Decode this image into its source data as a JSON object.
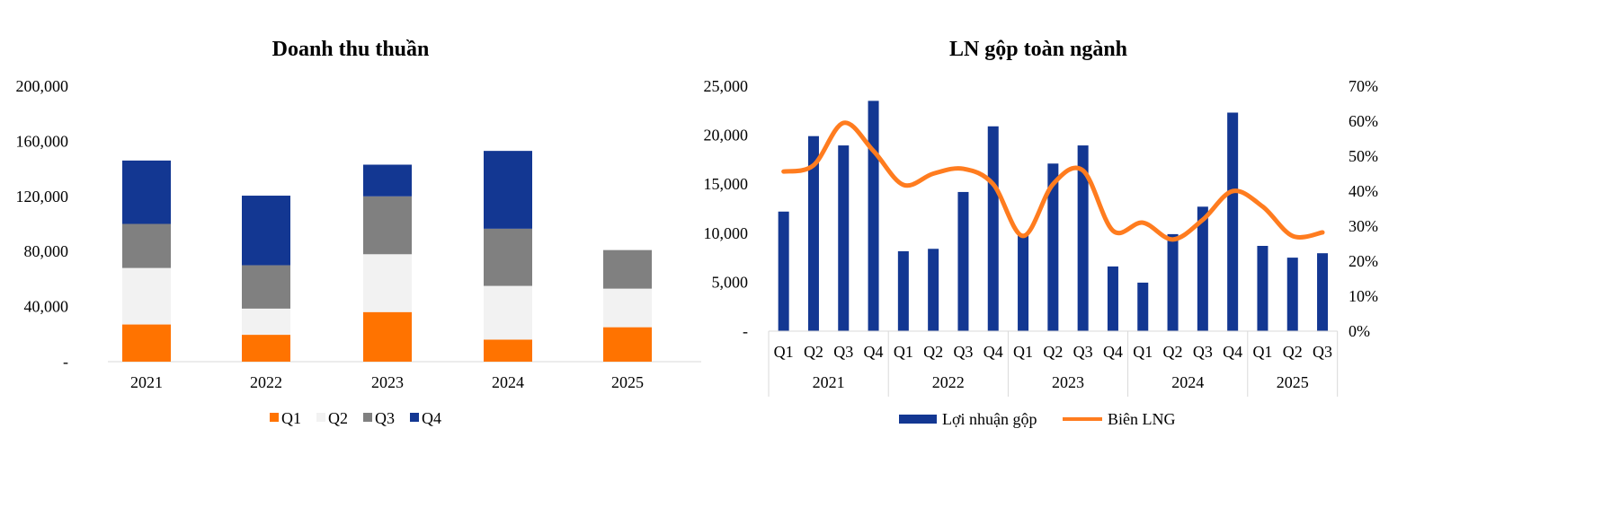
{
  "chart_data": [
    {
      "type": "bar",
      "stacked": true,
      "title": "Doanh thu thuần",
      "categories": [
        "2021",
        "2022",
        "2023",
        "2024",
        "2025"
      ],
      "yticks": [
        "-",
        "40,000",
        "80,000",
        "120,000",
        "160,000",
        "200,000"
      ],
      "ylim": [
        0,
        200000
      ],
      "grid": false,
      "legend_position": "bottom",
      "series": [
        {
          "name": "Q1",
          "color": "#FF7300",
          "values": [
            27000,
            19500,
            36000,
            16000,
            25000
          ]
        },
        {
          "name": "Q2",
          "color": "#F2F2F2",
          "values": [
            41000,
            19000,
            42000,
            39000,
            28000
          ]
        },
        {
          "name": "Q3",
          "color": "#808080",
          "values": [
            32000,
            31500,
            42000,
            41500,
            28000
          ]
        },
        {
          "name": "Q4",
          "color": "#133792",
          "values": [
            46000,
            50500,
            23000,
            56500,
            null
          ]
        }
      ]
    },
    {
      "type": "bar+line",
      "title": "LN gộp toàn ngành",
      "categories": [
        "Q1",
        "Q2",
        "Q3",
        "Q4",
        "Q1",
        "Q2",
        "Q3",
        "Q4",
        "Q1",
        "Q2",
        "Q3",
        "Q4",
        "Q1",
        "Q2",
        "Q3",
        "Q4",
        "Q1",
        "Q2",
        "Q3"
      ],
      "groups": [
        {
          "label": "2021",
          "count": 4
        },
        {
          "label": "2022",
          "count": 4
        },
        {
          "label": "2023",
          "count": 4
        },
        {
          "label": "2024",
          "count": 4
        },
        {
          "label": "2025",
          "count": 3
        }
      ],
      "yticks_left": [
        "-",
        "5,000",
        "10,000",
        "15,000",
        "20,000",
        "25,000"
      ],
      "ylim_left": [
        0,
        25000
      ],
      "yticks_right": [
        "0%",
        "10%",
        "20%",
        "30%",
        "40%",
        "50%",
        "60%",
        "70%"
      ],
      "ylim_right": [
        0,
        70
      ],
      "grid": false,
      "legend_position": "bottom",
      "series": [
        {
          "name": "Lợi nhuận gộp",
          "type": "bar",
          "axis": "left",
          "color": "#133792",
          "values": [
            12200,
            19900,
            18950,
            23500,
            8150,
            8400,
            14200,
            20900,
            9800,
            17100,
            18950,
            6600,
            4950,
            9900,
            12700,
            22300,
            8700,
            7500,
            7950
          ]
        },
        {
          "name": "Biên LNG",
          "type": "line",
          "smooth": true,
          "axis": "right",
          "color": "#FF7C1F",
          "values": [
            45.6,
            47.4,
            59.5,
            51.5,
            41.8,
            45.0,
            46.4,
            42.0,
            27.2,
            42.0,
            45.9,
            28.7,
            31.0,
            26.2,
            31.8,
            40.0,
            35.6,
            27.2,
            28.2
          ]
        }
      ]
    }
  ]
}
